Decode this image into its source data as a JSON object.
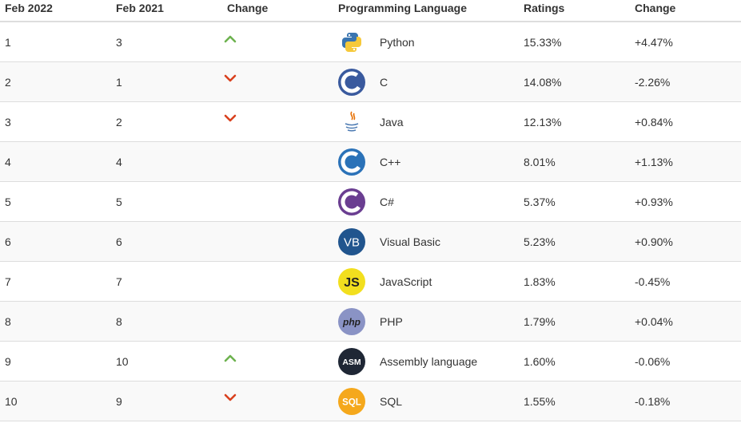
{
  "headers": {
    "current": "Feb 2022",
    "previous": "Feb 2021",
    "change": "Change",
    "language": "Programming Language",
    "ratings": "Ratings",
    "delta": "Change"
  },
  "colors": {
    "arrow_up": "#6db24f",
    "arrow_down": "#d9411e",
    "row_even": "#f9f9f9",
    "border": "#dddddd"
  },
  "rows": [
    {
      "rank": "1",
      "prev": "3",
      "trend": "up",
      "icon": "python-logo-icon",
      "language": "Python",
      "rating": "15.33%",
      "delta": "+4.47%"
    },
    {
      "rank": "2",
      "prev": "1",
      "trend": "down",
      "icon": "c-logo-icon",
      "language": "C",
      "rating": "14.08%",
      "delta": "-2.26%"
    },
    {
      "rank": "3",
      "prev": "2",
      "trend": "down",
      "icon": "java-logo-icon",
      "language": "Java",
      "rating": "12.13%",
      "delta": "+0.84%"
    },
    {
      "rank": "4",
      "prev": "4",
      "trend": "none",
      "icon": "cpp-logo-icon",
      "language": "C++",
      "rating": "8.01%",
      "delta": "+1.13%"
    },
    {
      "rank": "5",
      "prev": "5",
      "trend": "none",
      "icon": "csharp-logo-icon",
      "language": "C#",
      "rating": "5.37%",
      "delta": "+0.93%"
    },
    {
      "rank": "6",
      "prev": "6",
      "trend": "none",
      "icon": "vb-logo-icon",
      "language": "Visual Basic",
      "rating": "5.23%",
      "delta": "+0.90%"
    },
    {
      "rank": "7",
      "prev": "7",
      "trend": "none",
      "icon": "js-logo-icon",
      "language": "JavaScript",
      "rating": "1.83%",
      "delta": "-0.45%"
    },
    {
      "rank": "8",
      "prev": "8",
      "trend": "none",
      "icon": "php-logo-icon",
      "language": "PHP",
      "rating": "1.79%",
      "delta": "+0.04%"
    },
    {
      "rank": "9",
      "prev": "10",
      "trend": "up",
      "icon": "asm-logo-icon",
      "language": "Assembly language",
      "rating": "1.60%",
      "delta": "-0.06%"
    },
    {
      "rank": "10",
      "prev": "9",
      "trend": "down",
      "icon": "sql-logo-icon",
      "language": "SQL",
      "rating": "1.55%",
      "delta": "-0.18%"
    }
  ],
  "logo_text": {
    "vb": "VB",
    "js": "JS",
    "php": "php",
    "asm": "ASM",
    "sql": "SQL"
  }
}
